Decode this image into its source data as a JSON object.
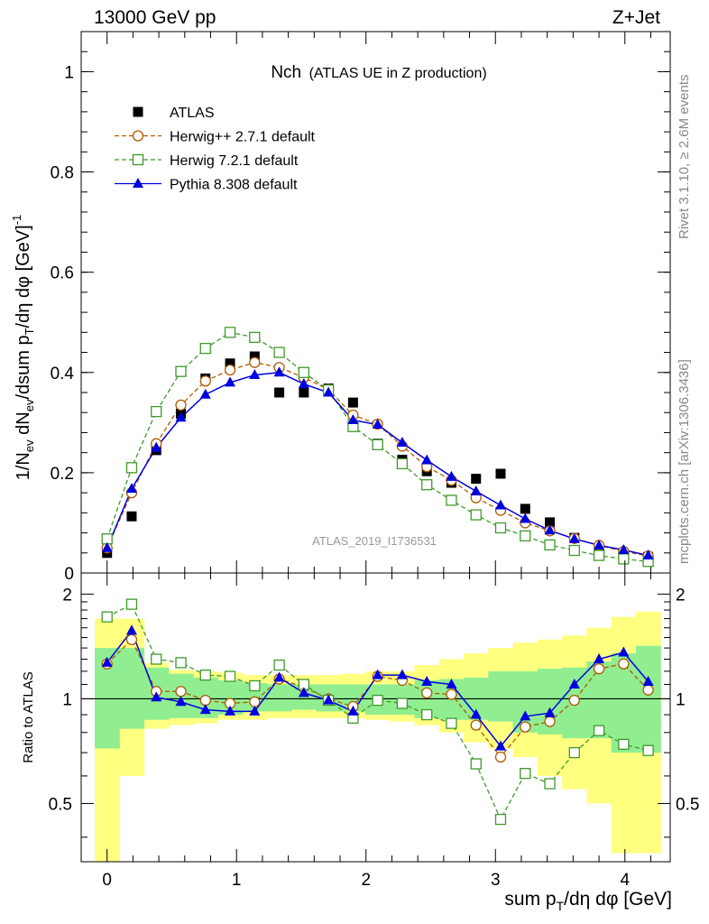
{
  "header": {
    "left": "13000 GeV pp",
    "right": "Z+Jet"
  },
  "side_labels": {
    "rivet": "Rivet 3.1.10, ≥ 2.6M events",
    "mcplots": "mcplots.cern.ch [arXiv:1306.3436]"
  },
  "chart_data": [
    {
      "type": "scatter",
      "title_main": "Nch",
      "title_sub": "(ATLAS UE in Z production)",
      "ylabel": "1/N_ev dN_ev/dsum p_T/dη dφ [GeV]^-1",
      "ylim": [
        0,
        1.08
      ],
      "yticks": [
        0,
        0.2,
        0.4,
        0.6,
        0.8,
        1
      ],
      "ytick_labels": [
        "0",
        "0.2",
        "0.4",
        "0.6",
        "0.8",
        "1"
      ],
      "analysis_label": "ATLAS_2019_I1736531",
      "legend_position": "top-left",
      "x": [
        0.0,
        0.19,
        0.38,
        0.57,
        0.76,
        0.95,
        1.14,
        1.33,
        1.52,
        1.71,
        1.9,
        2.09,
        2.28,
        2.47,
        2.66,
        2.85,
        3.04,
        3.23,
        3.42,
        3.61,
        3.8,
        3.99,
        4.18
      ],
      "series": [
        {
          "name": "ATLAS",
          "style": "data",
          "color": "#000000",
          "values": [
            0.04,
            0.113,
            0.245,
            0.318,
            0.388,
            0.418,
            0.432,
            0.36,
            0.36,
            0.368,
            0.34,
            0.258,
            0.226,
            0.203,
            0.18,
            0.188,
            0.198,
            0.128,
            0.101,
            0.07,
            0.05,
            0.03,
            0.032
          ]
        },
        {
          "name": "Herwig++ 2.7.1 default",
          "style": "circle-dashed",
          "color": "#b05a00",
          "values": [
            0.05,
            0.16,
            0.258,
            0.335,
            0.383,
            0.405,
            0.42,
            0.41,
            0.39,
            0.366,
            0.315,
            0.297,
            0.253,
            0.212,
            0.185,
            0.15,
            0.125,
            0.1,
            0.084,
            0.069,
            0.055,
            0.043,
            0.034
          ]
        },
        {
          "name": "Herwig 7.2.1 default",
          "style": "square-dashed",
          "color": "#3f9a2a",
          "values": [
            0.068,
            0.21,
            0.322,
            0.402,
            0.448,
            0.48,
            0.47,
            0.44,
            0.4,
            0.365,
            0.292,
            0.256,
            0.218,
            0.176,
            0.145,
            0.116,
            0.09,
            0.074,
            0.056,
            0.045,
            0.035,
            0.028,
            0.023
          ]
        },
        {
          "name": "Pythia 8.308 default",
          "style": "triangle-solid",
          "color": "#0000e0",
          "values": [
            0.05,
            0.168,
            0.25,
            0.31,
            0.356,
            0.38,
            0.395,
            0.4,
            0.377,
            0.36,
            0.305,
            0.296,
            0.26,
            0.225,
            0.192,
            0.163,
            0.135,
            0.108,
            0.085,
            0.068,
            0.055,
            0.046,
            0.035
          ]
        }
      ]
    },
    {
      "type": "scatter",
      "ylabel": "Ratio to ATLAS",
      "xlabel": "sum p_T/dη dφ [GeV]",
      "ylim": [
        0.34,
        2.3
      ],
      "yscale": "log",
      "yticks": [
        0.5,
        1,
        2
      ],
      "ytick_labels": [
        "0.5",
        "1",
        "2"
      ],
      "xlim": [
        -0.2,
        4.35
      ],
      "xticks": [
        0,
        1,
        2,
        3,
        4
      ],
      "xtick_labels": [
        "0",
        "1",
        "2",
        "3",
        "4"
      ],
      "x": [
        0.0,
        0.19,
        0.38,
        0.57,
        0.76,
        0.95,
        1.14,
        1.33,
        1.52,
        1.71,
        1.9,
        2.09,
        2.28,
        2.47,
        2.66,
        2.85,
        3.04,
        3.23,
        3.42,
        3.61,
        3.8,
        3.99,
        4.18
      ],
      "reference_line": 1,
      "bands": {
        "inner_color": "#90ee90",
        "outer_color": "#ffff80",
        "inner_lo": [
          0.72,
          0.82,
          0.87,
          0.88,
          0.88,
          0.9,
          0.92,
          0.92,
          0.93,
          0.92,
          0.92,
          0.9,
          0.9,
          0.88,
          0.87,
          0.87,
          0.86,
          0.8,
          0.79,
          0.77,
          0.77,
          0.7,
          0.7
        ],
        "inner_hi": [
          1.4,
          1.4,
          1.23,
          1.18,
          1.15,
          1.13,
          1.11,
          1.1,
          1.1,
          1.1,
          1.1,
          1.1,
          1.1,
          1.13,
          1.14,
          1.15,
          1.2,
          1.2,
          1.22,
          1.23,
          1.28,
          1.35,
          1.42
        ],
        "outer_lo": [
          0.33,
          0.6,
          0.82,
          0.84,
          0.85,
          0.87,
          0.87,
          0.88,
          0.88,
          0.88,
          0.88,
          0.87,
          0.86,
          0.84,
          0.8,
          0.75,
          0.72,
          0.68,
          0.6,
          0.55,
          0.5,
          0.36,
          0.36
        ],
        "outer_hi": [
          1.7,
          1.7,
          1.27,
          1.21,
          1.2,
          1.19,
          1.17,
          1.17,
          1.17,
          1.17,
          1.18,
          1.2,
          1.2,
          1.25,
          1.3,
          1.35,
          1.4,
          1.45,
          1.48,
          1.52,
          1.6,
          1.72,
          1.78
        ]
      },
      "series": [
        {
          "name": "Herwig++ 2.7.1 default",
          "style": "circle-dashed",
          "color": "#b05a00",
          "values": [
            1.26,
            1.48,
            1.05,
            1.05,
            0.99,
            0.97,
            0.98,
            1.14,
            1.08,
            1.0,
            0.95,
            1.16,
            1.13,
            1.04,
            1.03,
            0.84,
            0.68,
            0.83,
            0.86,
            0.99,
            1.22,
            1.26,
            1.06
          ]
        },
        {
          "name": "Herwig 7.2.1 default",
          "style": "square-dashed",
          "color": "#3f9a2a",
          "values": [
            1.72,
            1.87,
            1.3,
            1.27,
            1.17,
            1.16,
            1.09,
            1.25,
            1.1,
            0.99,
            0.88,
            0.99,
            0.97,
            0.9,
            0.85,
            0.65,
            0.45,
            0.61,
            0.57,
            0.7,
            0.81,
            0.74,
            0.71
          ]
        },
        {
          "name": "Pythia 8.308 default",
          "style": "triangle-solid",
          "color": "#0000e0",
          "values": [
            1.27,
            1.57,
            1.01,
            0.98,
            0.93,
            0.92,
            0.92,
            1.15,
            1.04,
            0.99,
            0.92,
            1.17,
            1.17,
            1.12,
            1.1,
            0.9,
            0.73,
            0.89,
            0.91,
            1.1,
            1.3,
            1.36,
            1.12
          ]
        }
      ]
    }
  ]
}
